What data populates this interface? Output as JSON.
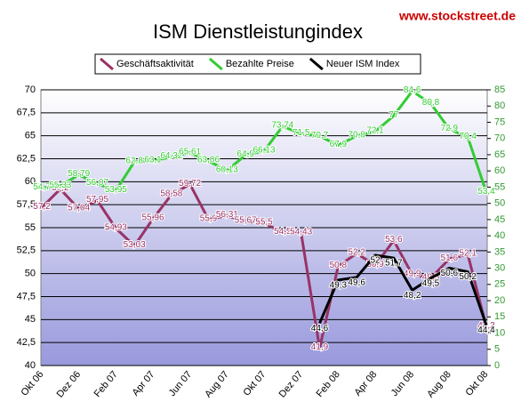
{
  "chart_data": {
    "type": "line",
    "title": "ISM Dienstleistungindex",
    "watermark": "www.stockstreet.de",
    "categories": [
      "Okt 06",
      null,
      "Dez 06",
      null,
      "Feb 07",
      null,
      "Apr 07",
      null,
      "Jun 07",
      null,
      "Aug 07",
      null,
      "Okt 07",
      null,
      "Dez 07",
      null,
      "Feb 08",
      null,
      "Apr 08",
      null,
      "Jun 08",
      null,
      "Aug 08",
      null,
      "Okt 08"
    ],
    "ylim": [
      40,
      70
    ],
    "yticks": [
      40,
      {
        "value": 42.5,
        "label": "42,5"
      },
      45,
      {
        "value": 47.5,
        "label": "47,5"
      },
      50,
      {
        "value": 52.5,
        "label": "52,5"
      },
      55,
      {
        "value": 57.5,
        "label": "57,5"
      },
      60,
      {
        "value": 62.5,
        "label": "62,5"
      },
      65,
      {
        "value": 67.5,
        "label": "67,5"
      },
      70
    ],
    "y2lim": [
      0,
      85
    ],
    "y2ticks": [
      0,
      5,
      10,
      15,
      20,
      25,
      30,
      35,
      40,
      45,
      50,
      55,
      60,
      65,
      70,
      75,
      80,
      85
    ],
    "grid": true,
    "legend": "top",
    "series": [
      {
        "name": "Geschäftsaktivität",
        "color": "#993366",
        "values": [
          57.2,
          59.2,
          57.04,
          57.95,
          54.93,
          53.03,
          55.96,
          58.58,
          59.72,
          55.9,
          56.31,
          55.67,
          55.5,
          54.5,
          54.43,
          41.9,
          50.8,
          52.2,
          50.9,
          53.6,
          49.9,
          49.5,
          51.6,
          52.1,
          44.2
        ],
        "value_labels": [
          "57,2",
          "59,2",
          "57,04",
          "57,95",
          "54,93",
          "53,03",
          "55,96",
          "58,58",
          "59,72",
          "55,9",
          "56,31",
          "55,67",
          "55,5",
          "54,5",
          "54,43",
          "41,9",
          "50,8",
          "52,2",
          "50,9",
          "53,6",
          "49,9",
          "49,5",
          "51,6",
          "52,1",
          "44,2"
        ]
      },
      {
        "name": "Bezahlte Preise",
        "color": "#33cc33",
        "axis": "y2",
        "values": [
          54.7,
          55.33,
          58.79,
          56.07,
          53.95,
          62.8,
          63.1,
          64.32,
          65.61,
          63.06,
          60.13,
          64.9,
          66.13,
          73.74,
          71.5,
          70.7,
          67.9,
          70.8,
          72.1,
          77,
          84.6,
          80.8,
          72.9,
          70.4,
          53.4
        ],
        "value_labels": [
          "54,7",
          "55,33",
          "58,79",
          "56,07",
          "53,95",
          "62,8",
          "63,1",
          "64,32",
          "65,61",
          "63,06",
          "60,13",
          "64,9",
          "66,13",
          "73,74",
          "71,5",
          "70,7",
          "67,9",
          "70,8",
          "72,1",
          "77",
          "84,6",
          "80,8",
          "72,9",
          "70,4",
          "53,4"
        ]
      },
      {
        "name": "Neuer ISM Index",
        "color": "#000000",
        "values": [
          null,
          null,
          null,
          null,
          null,
          null,
          null,
          null,
          null,
          null,
          null,
          null,
          null,
          null,
          null,
          44.6,
          49.3,
          49.6,
          52,
          51.7,
          48.2,
          49.5,
          50.6,
          50.2,
          44.4
        ],
        "value_labels": [
          null,
          null,
          null,
          null,
          null,
          null,
          null,
          null,
          null,
          null,
          null,
          null,
          null,
          null,
          null,
          "44,6",
          "49,3",
          "49,6",
          "52",
          "51,7",
          "48,2",
          "49,5",
          "50,6",
          "50,2",
          "44,4"
        ]
      }
    ]
  }
}
